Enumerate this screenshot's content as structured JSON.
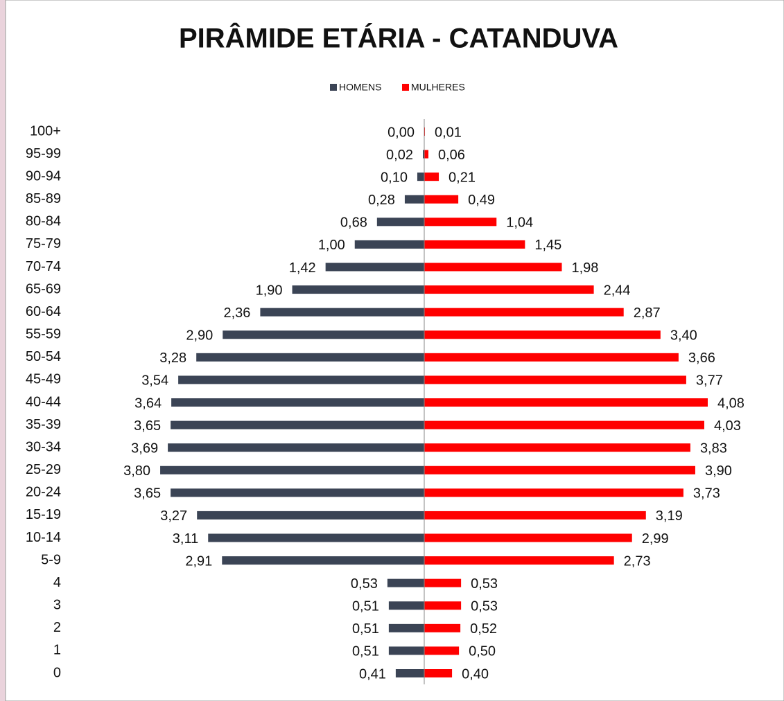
{
  "chart_data": {
    "type": "pyramid",
    "title": "PIRÂMIDE ETÁRIA - CATANDUVA",
    "categories": [
      "100+",
      "95-99",
      "90-94",
      "85-89",
      "80-84",
      "75-79",
      "70-74",
      "65-69",
      "60-64",
      "55-59",
      "50-54",
      "45-49",
      "40-44",
      "35-39",
      "30-34",
      "25-29",
      "20-24",
      "15-19",
      "10-14",
      "5-9",
      "4",
      "3",
      "2",
      "1",
      "0"
    ],
    "series": [
      {
        "name": "HOMENS",
        "color": "#3b4455",
        "values": [
          0.0,
          0.02,
          0.1,
          0.28,
          0.68,
          1.0,
          1.42,
          1.9,
          2.36,
          2.9,
          3.28,
          3.54,
          3.64,
          3.65,
          3.69,
          3.8,
          3.65,
          3.27,
          3.11,
          2.91,
          0.53,
          0.51,
          0.51,
          0.51,
          0.41
        ],
        "value_labels": [
          "0,00",
          "0,02",
          "0,10",
          "0,28",
          "0,68",
          "1,00",
          "1,42",
          "1,90",
          "2,36",
          "2,90",
          "3,28",
          "3,54",
          "3,64",
          "3,65",
          "3,69",
          "3,80",
          "3,65",
          "3,27",
          "3,11",
          "2,91",
          "0,53",
          "0,51",
          "0,51",
          "0,51",
          "0,41"
        ]
      },
      {
        "name": "MULHERES",
        "color": "#ff0000",
        "values": [
          0.01,
          0.06,
          0.21,
          0.49,
          1.04,
          1.45,
          1.98,
          2.44,
          2.87,
          3.4,
          3.66,
          3.77,
          4.08,
          4.03,
          3.83,
          3.9,
          3.73,
          3.19,
          2.99,
          2.73,
          0.53,
          0.53,
          0.52,
          0.5,
          0.4
        ],
        "value_labels": [
          "0,01",
          "0,06",
          "0,21",
          "0,49",
          "1,04",
          "1,45",
          "1,98",
          "2,44",
          "2,87",
          "3,40",
          "3,66",
          "3,77",
          "4,08",
          "4,03",
          "3,83",
          "3,90",
          "3,73",
          "3,19",
          "2,99",
          "2,73",
          "0,53",
          "0,53",
          "0,52",
          "0,50",
          "0,40"
        ]
      }
    ]
  }
}
